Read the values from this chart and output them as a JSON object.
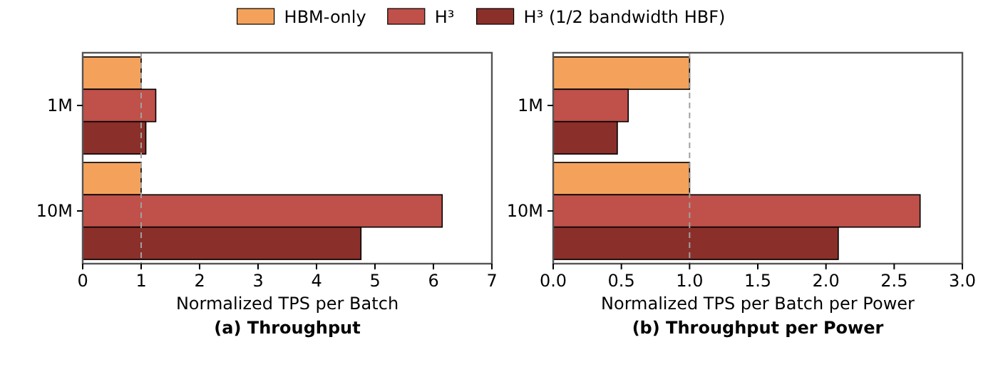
{
  "chart_data": [
    {
      "type": "bar",
      "orientation": "horizontal",
      "title": "(a) Throughput",
      "xlabel": "Normalized TPS per Batch",
      "categories": [
        "1M",
        "10M"
      ],
      "legend": "top",
      "series": [
        {
          "name": "HBM-only",
          "color": "#f4a25b",
          "values": [
            1,
            1
          ]
        },
        {
          "name": "H³",
          "color": "#c0504a",
          "values": [
            1.25,
            6.15
          ]
        },
        {
          "name": "H³ (1/2 bandwidth HBF)",
          "color": "#8b2f2a",
          "values": [
            1.08,
            4.76
          ]
        }
      ],
      "xlim": [
        0,
        7
      ],
      "xticks": [
        0,
        1,
        2,
        3,
        4,
        5,
        6,
        7
      ],
      "ref_lines": [
        {
          "axis": "x",
          "value": 1,
          "color": "#a0a0a0",
          "line_style": "dashed"
        }
      ]
    },
    {
      "type": "bar",
      "orientation": "horizontal",
      "title": "(b) Throughput per Power",
      "xlabel": "Normalized TPS per Batch per Power",
      "categories": [
        "1M",
        "10M"
      ],
      "series": [
        {
          "color": "#f4a25b",
          "values": [
            1,
            1
          ]
        },
        {
          "color": "#c0504a",
          "values": [
            0.55,
            2.69
          ]
        },
        {
          "color": "#8b2f2a",
          "values": [
            0.47,
            2.09
          ]
        }
      ],
      "xlim": [
        0,
        3
      ],
      "xticks": [
        {
          "value": 0,
          "label": "0.0"
        },
        {
          "value": 0.5,
          "label": "0.5"
        },
        {
          "value": 1,
          "label": "1.0"
        },
        {
          "value": 1.5,
          "label": "1.5"
        },
        {
          "value": 2,
          "label": "2.0"
        },
        {
          "value": 2.5,
          "label": "2.5"
        },
        {
          "value": 3,
          "label": "3.0"
        }
      ],
      "ref_lines": [
        {
          "axis": "x",
          "value": 1,
          "color": "#a0a0a0",
          "line_style": "dashed"
        }
      ]
    }
  ]
}
